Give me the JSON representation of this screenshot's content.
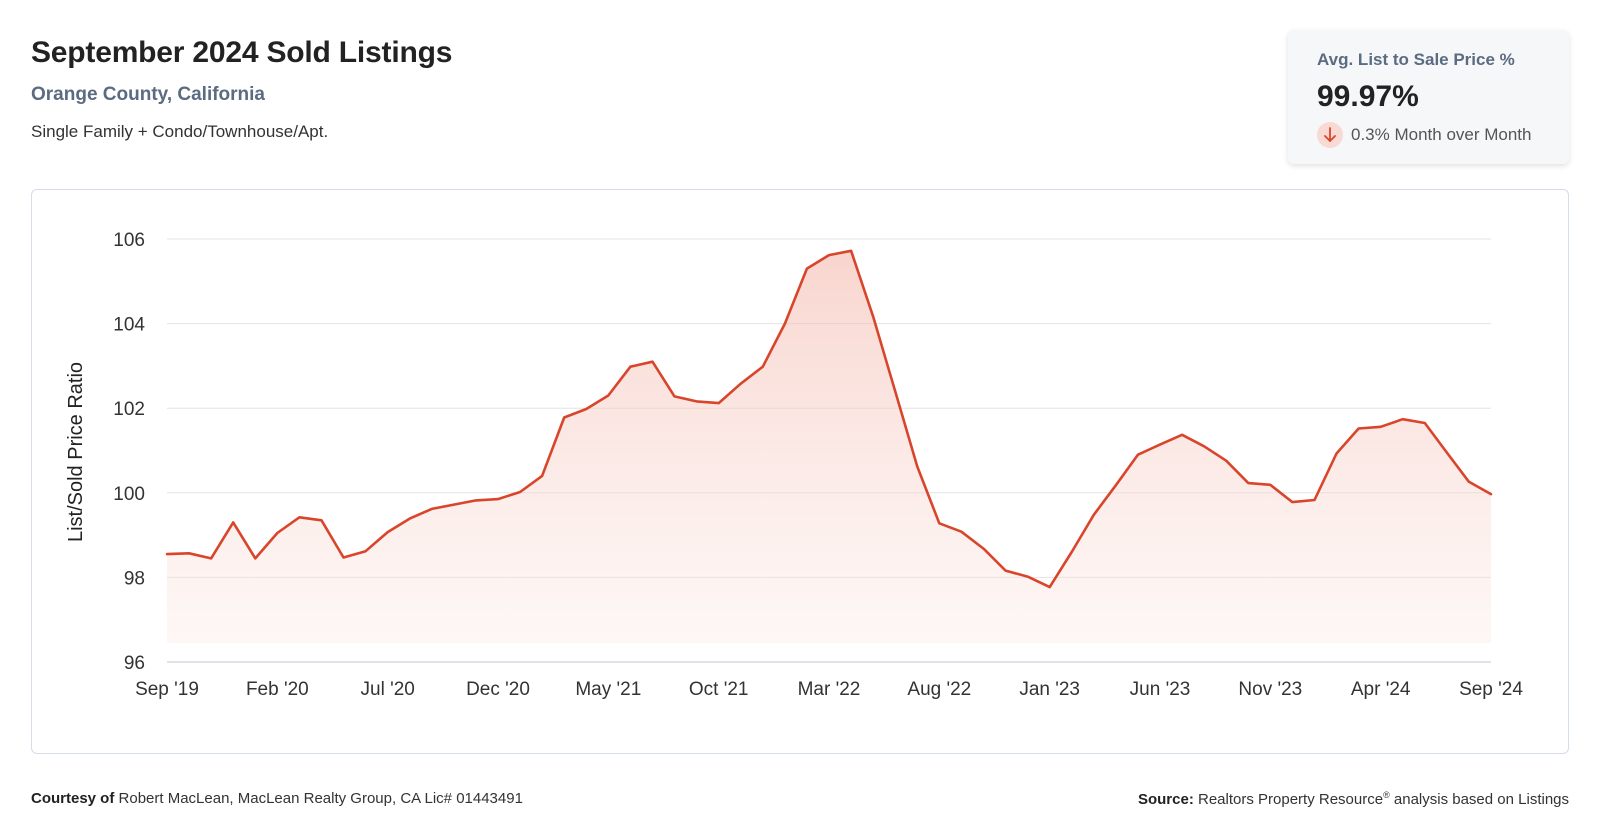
{
  "header": {
    "title": "September 2024 Sold Listings",
    "subtitle": "Orange County, California",
    "description": "Single Family + Condo/Townhouse/Apt."
  },
  "kpi": {
    "label": "Avg. List to Sale Price %",
    "value": "99.97%",
    "change": "0.3% Month over Month",
    "change_icon": "arrow-down-icon",
    "change_color": "#d9452b"
  },
  "colors": {
    "line": "#d9452b",
    "fill": "#f9d9d3",
    "grid": "#e3e3e3"
  },
  "chart_data": {
    "type": "area",
    "title": "",
    "xlabel": "",
    "ylabel": "List/Sold Price Ratio",
    "ylim": [
      96,
      106
    ],
    "yticks": [
      96,
      98,
      100,
      102,
      104,
      106
    ],
    "ytick_labels": [
      "96",
      "98",
      "100",
      "102",
      "104",
      "106"
    ],
    "xtick_labels": [
      "Sep '19",
      "Feb '20",
      "Jul '20",
      "Dec '20",
      "May '21",
      "Oct '21",
      "Mar '22",
      "Aug '22",
      "Jan '23",
      "Jun '23",
      "Nov '23",
      "Apr '24",
      "Sep '24"
    ],
    "xtick_indices": [
      0,
      5,
      10,
      15,
      20,
      25,
      30,
      35,
      40,
      45,
      50,
      55,
      60
    ],
    "grid": true,
    "series": [
      {
        "name": "List/Sold Price Ratio",
        "values": [
          98.55,
          98.57,
          98.45,
          99.3,
          98.45,
          99.05,
          99.42,
          99.35,
          98.47,
          98.62,
          99.07,
          99.39,
          99.62,
          99.72,
          99.82,
          99.85,
          100.02,
          100.4,
          101.78,
          101.98,
          102.3,
          102.98,
          103.1,
          102.28,
          102.16,
          102.12,
          102.58,
          102.98,
          104.0,
          105.3,
          105.62,
          105.72,
          104.17,
          102.4,
          100.62,
          99.28,
          99.08,
          98.68,
          98.16,
          98.02,
          97.77,
          98.6,
          99.48,
          100.18,
          100.9,
          101.14,
          101.37,
          101.1,
          100.76,
          100.23,
          100.19,
          99.78,
          99.83,
          100.93,
          101.52,
          101.56,
          101.74,
          101.65,
          100.95,
          100.26,
          99.97
        ]
      }
    ]
  },
  "footer": {
    "courtesy_label": "Courtesy of",
    "courtesy_text": "Robert MacLean, MacLean Realty Group, CA Lic# 01443491",
    "source_label": "Source:",
    "source_text_1": "Realtors Property Resource",
    "source_sup": "®",
    "source_text_2": "analysis based on Listings"
  }
}
